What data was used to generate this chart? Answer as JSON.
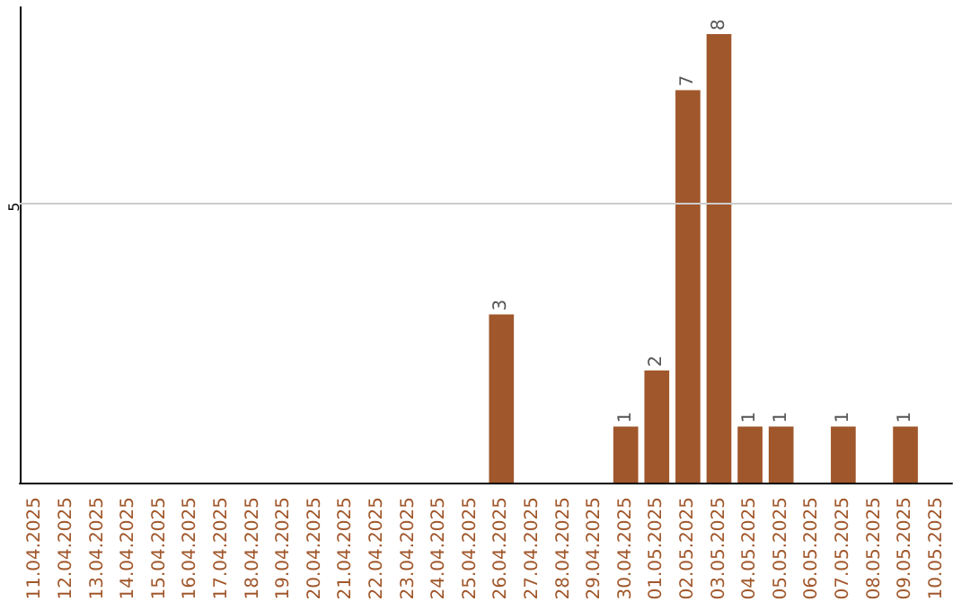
{
  "chart_data": {
    "type": "bar",
    "categories": [
      "11.04.2025",
      "12.04.2025",
      "13.04.2025",
      "14.04.2025",
      "15.04.2025",
      "16.04.2025",
      "17.04.2025",
      "18.04.2025",
      "19.04.2025",
      "20.04.2025",
      "21.04.2025",
      "22.04.2025",
      "23.04.2025",
      "24.04.2025",
      "25.04.2025",
      "26.04.2025",
      "27.04.2025",
      "28.04.2025",
      "29.04.2025",
      "30.04.2025",
      "01.05.2025",
      "02.05.2025",
      "03.05.2025",
      "04.05.2025",
      "05.05.2025",
      "06.05.2025",
      "07.05.2025",
      "08.05.2025",
      "09.05.2025",
      "10.05.2025"
    ],
    "values": [
      null,
      null,
      null,
      null,
      null,
      null,
      null,
      null,
      null,
      null,
      null,
      null,
      null,
      null,
      null,
      3,
      null,
      null,
      null,
      1,
      2,
      7,
      8,
      1,
      1,
      null,
      1,
      null,
      1,
      null
    ],
    "data_labels": true,
    "color": "#a0572b",
    "ref_lines": [
      {
        "axis": "y",
        "value": 5,
        "label": "5",
        "color": "#cccccc"
      }
    ]
  }
}
